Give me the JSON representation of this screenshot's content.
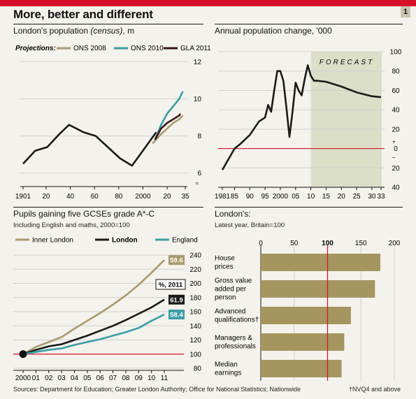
{
  "headline": "More, better and different",
  "chart_number": "1",
  "source": "Sources: Department for Education; Greater London Authority; Office for National Statistics; Nationwide",
  "footnote": "†NVQ4 and above",
  "colors": {
    "ons2008": "#a99a6c",
    "ons2010": "#3a9ea7",
    "gla2011": "#3a1414",
    "london": "#1a1a1a",
    "inner": "#a99a6c",
    "england": "#3a9ea7",
    "bar": "#a5955f",
    "red": "#d6102b",
    "forecast": "#dcdfc8"
  },
  "chart_data": [
    {
      "id": "population",
      "type": "line",
      "title": "London's population ",
      "title_italic": "(census)",
      "title_suffix": ", m",
      "legend_label": "Projections:",
      "xlim": [
        1901,
        2035
      ],
      "ylim": [
        5.5,
        12.5
      ],
      "yticks": [
        6,
        8,
        10,
        12
      ],
      "xticks": [
        1901,
        1920,
        1940,
        1960,
        1980,
        2000,
        2020,
        2035
      ],
      "xtick_labels": [
        "1901",
        "20",
        "40",
        "60",
        "80",
        "2000",
        "20",
        "35"
      ],
      "series": [
        {
          "name": "Census",
          "color_key": "london",
          "points": [
            [
              1901,
              6.5
            ],
            [
              1911,
              7.2
            ],
            [
              1921,
              7.4
            ],
            [
              1931,
              8.1
            ],
            [
              1939,
              8.6
            ],
            [
              1951,
              8.2
            ],
            [
              1961,
              8.0
            ],
            [
              1971,
              7.4
            ],
            [
              1981,
              6.8
            ],
            [
              1991,
              6.4
            ],
            [
              2001,
              7.3
            ],
            [
              2011,
              8.2
            ]
          ]
        },
        {
          "name": "ONS 2008",
          "color_key": "ons2008",
          "points": [
            [
              2008,
              7.6
            ],
            [
              2015,
              8.1
            ],
            [
              2020,
              8.4
            ],
            [
              2025,
              8.7
            ],
            [
              2030,
              8.9
            ],
            [
              2033,
              9.1
            ]
          ]
        },
        {
          "name": "ONS 2010",
          "color_key": "ons2010",
          "points": [
            [
              2010,
              7.8
            ],
            [
              2015,
              8.6
            ],
            [
              2020,
              9.2
            ],
            [
              2025,
              9.6
            ],
            [
              2030,
              10.0
            ],
            [
              2033,
              10.4
            ]
          ]
        },
        {
          "name": "GLA 2011",
          "color_key": "gla2011",
          "points": [
            [
              2010,
              7.8
            ],
            [
              2015,
              8.4
            ],
            [
              2020,
              8.7
            ],
            [
              2025,
              8.9
            ],
            [
              2030,
              9.1
            ],
            [
              2031,
              9.2
            ]
          ]
        }
      ]
    },
    {
      "id": "change",
      "type": "line",
      "title": "Annual population change, '000",
      "forecast_label": "FORECAST",
      "forecast_start": 2010,
      "xlim": [
        1981,
        2033
      ],
      "ylim": [
        -40,
        100
      ],
      "yticks": [
        -40,
        -20,
        0,
        20,
        40,
        60,
        80,
        100
      ],
      "ytick_labels": [
        "40",
        "20",
        "0",
        "20",
        "40",
        "60",
        "80",
        "100"
      ],
      "sign_plus": "+",
      "sign_minus": "–",
      "xticks": [
        1981,
        1985,
        1990,
        1995,
        2000,
        2005,
        2010,
        2015,
        2020,
        2025,
        2030,
        2033
      ],
      "xtick_labels": [
        "1981",
        "85",
        "90",
        "95",
        "2000",
        "05",
        "10",
        "15",
        "20",
        "25",
        "30",
        "33"
      ],
      "series": [
        {
          "name": "Annual change",
          "points": [
            [
              1981,
              -22
            ],
            [
              1985,
              0
            ],
            [
              1987,
              5
            ],
            [
              1990,
              14
            ],
            [
              1993,
              28
            ],
            [
              1995,
              32
            ],
            [
              1996,
              45
            ],
            [
              1997,
              38
            ],
            [
              1998,
              60
            ],
            [
              1999,
              80
            ],
            [
              2000,
              80
            ],
            [
              2001,
              70
            ],
            [
              2002,
              42
            ],
            [
              2003,
              12
            ],
            [
              2004,
              38
            ],
            [
              2005,
              68
            ],
            [
              2006,
              60
            ],
            [
              2007,
              55
            ],
            [
              2008,
              72
            ],
            [
              2009,
              86
            ],
            [
              2010,
              75
            ],
            [
              2011,
              70
            ],
            [
              2012,
              70
            ],
            [
              2015,
              69
            ],
            [
              2020,
              64
            ],
            [
              2025,
              58
            ],
            [
              2030,
              54
            ],
            [
              2033,
              53
            ]
          ]
        }
      ]
    },
    {
      "id": "gcse",
      "type": "line",
      "title": "Pupils gaining five GCSEs grade A*-C",
      "subtitle": "Including English and maths, 2000=100",
      "xlim": [
        2000,
        2011
      ],
      "ylim": [
        80,
        240
      ],
      "yticks": [
        80,
        100,
        120,
        140,
        160,
        180,
        200,
        220,
        240
      ],
      "xticks": [
        2000,
        2001,
        2002,
        2003,
        2004,
        2005,
        2006,
        2007,
        2008,
        2009,
        2010,
        2011
      ],
      "xtick_labels": [
        "2000",
        "01",
        "02",
        "03",
        "04",
        "05",
        "06",
        "07",
        "08",
        "09",
        "10",
        "11"
      ],
      "annotation": "%, 2011",
      "series": [
        {
          "name": "Inner London",
          "color_key": "inner",
          "end_label": "59.6",
          "points": [
            [
              2000,
              100
            ],
            [
              2001,
              110
            ],
            [
              2002,
              117
            ],
            [
              2003,
              124
            ],
            [
              2004,
              136
            ],
            [
              2005,
              147
            ],
            [
              2006,
              158
            ],
            [
              2007,
              170
            ],
            [
              2008,
              183
            ],
            [
              2009,
              198
            ],
            [
              2010,
              215
            ],
            [
              2011,
              233
            ]
          ]
        },
        {
          "name": "London",
          "color_key": "london",
          "end_label": "61.9",
          "points": [
            [
              2000,
              100
            ],
            [
              2001,
              106
            ],
            [
              2002,
              111
            ],
            [
              2003,
              114
            ],
            [
              2004,
              120
            ],
            [
              2005,
              126
            ],
            [
              2006,
              133
            ],
            [
              2007,
              140
            ],
            [
              2008,
              148
            ],
            [
              2009,
              157
            ],
            [
              2010,
              166
            ],
            [
              2011,
              177
            ]
          ]
        },
        {
          "name": "England",
          "color_key": "england",
          "end_label": "58.4",
          "points": [
            [
              2000,
              100
            ],
            [
              2001,
              103
            ],
            [
              2002,
              106
            ],
            [
              2003,
              108
            ],
            [
              2004,
              113
            ],
            [
              2005,
              117
            ],
            [
              2006,
              121
            ],
            [
              2007,
              126
            ],
            [
              2008,
              131
            ],
            [
              2009,
              137
            ],
            [
              2010,
              147
            ],
            [
              2011,
              156
            ]
          ]
        }
      ]
    },
    {
      "id": "londons",
      "type": "bar",
      "title": "London's:",
      "subtitle": "Latest year, Britain=100",
      "xlim": [
        0,
        200
      ],
      "xticks": [
        0,
        50,
        100,
        150,
        200
      ],
      "bold_tick": 100,
      "categories": [
        [
          "House",
          "prices"
        ],
        [
          "Gross value",
          "added per",
          "person"
        ],
        [
          "Advanced",
          "qualifications†"
        ],
        [
          "Managers &",
          "professionals"
        ],
        [
          "Median",
          "earnings"
        ]
      ],
      "values": [
        179,
        171,
        135,
        125,
        121
      ]
    }
  ]
}
